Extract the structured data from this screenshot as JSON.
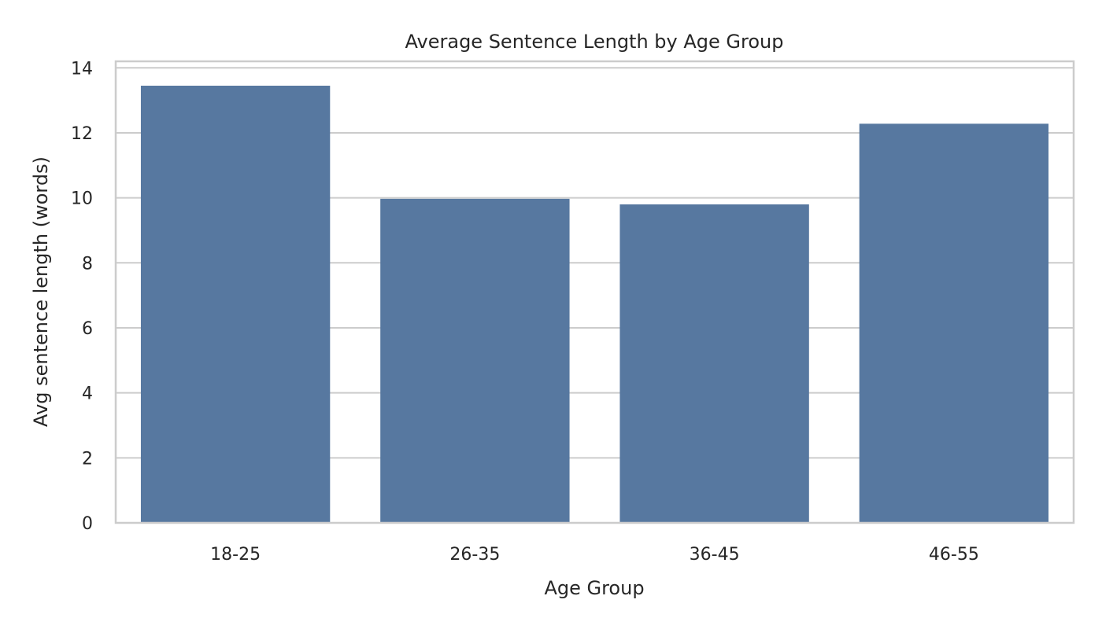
{
  "chart_data": {
    "type": "bar",
    "title": "Average Sentence Length by Age Group",
    "xlabel": "Age Group",
    "ylabel": "Avg sentence length (words)",
    "categories": [
      "18-25",
      "26-35",
      "36-45",
      "46-55"
    ],
    "values": [
      13.45,
      9.97,
      9.8,
      12.28
    ],
    "ylim": [
      0,
      14.2
    ],
    "yticks": [
      0,
      2,
      4,
      6,
      8,
      10,
      12,
      14
    ],
    "grid": true,
    "colors": {
      "bar": "#5778a0",
      "grid": "#cccccc",
      "text": "#262626"
    }
  }
}
